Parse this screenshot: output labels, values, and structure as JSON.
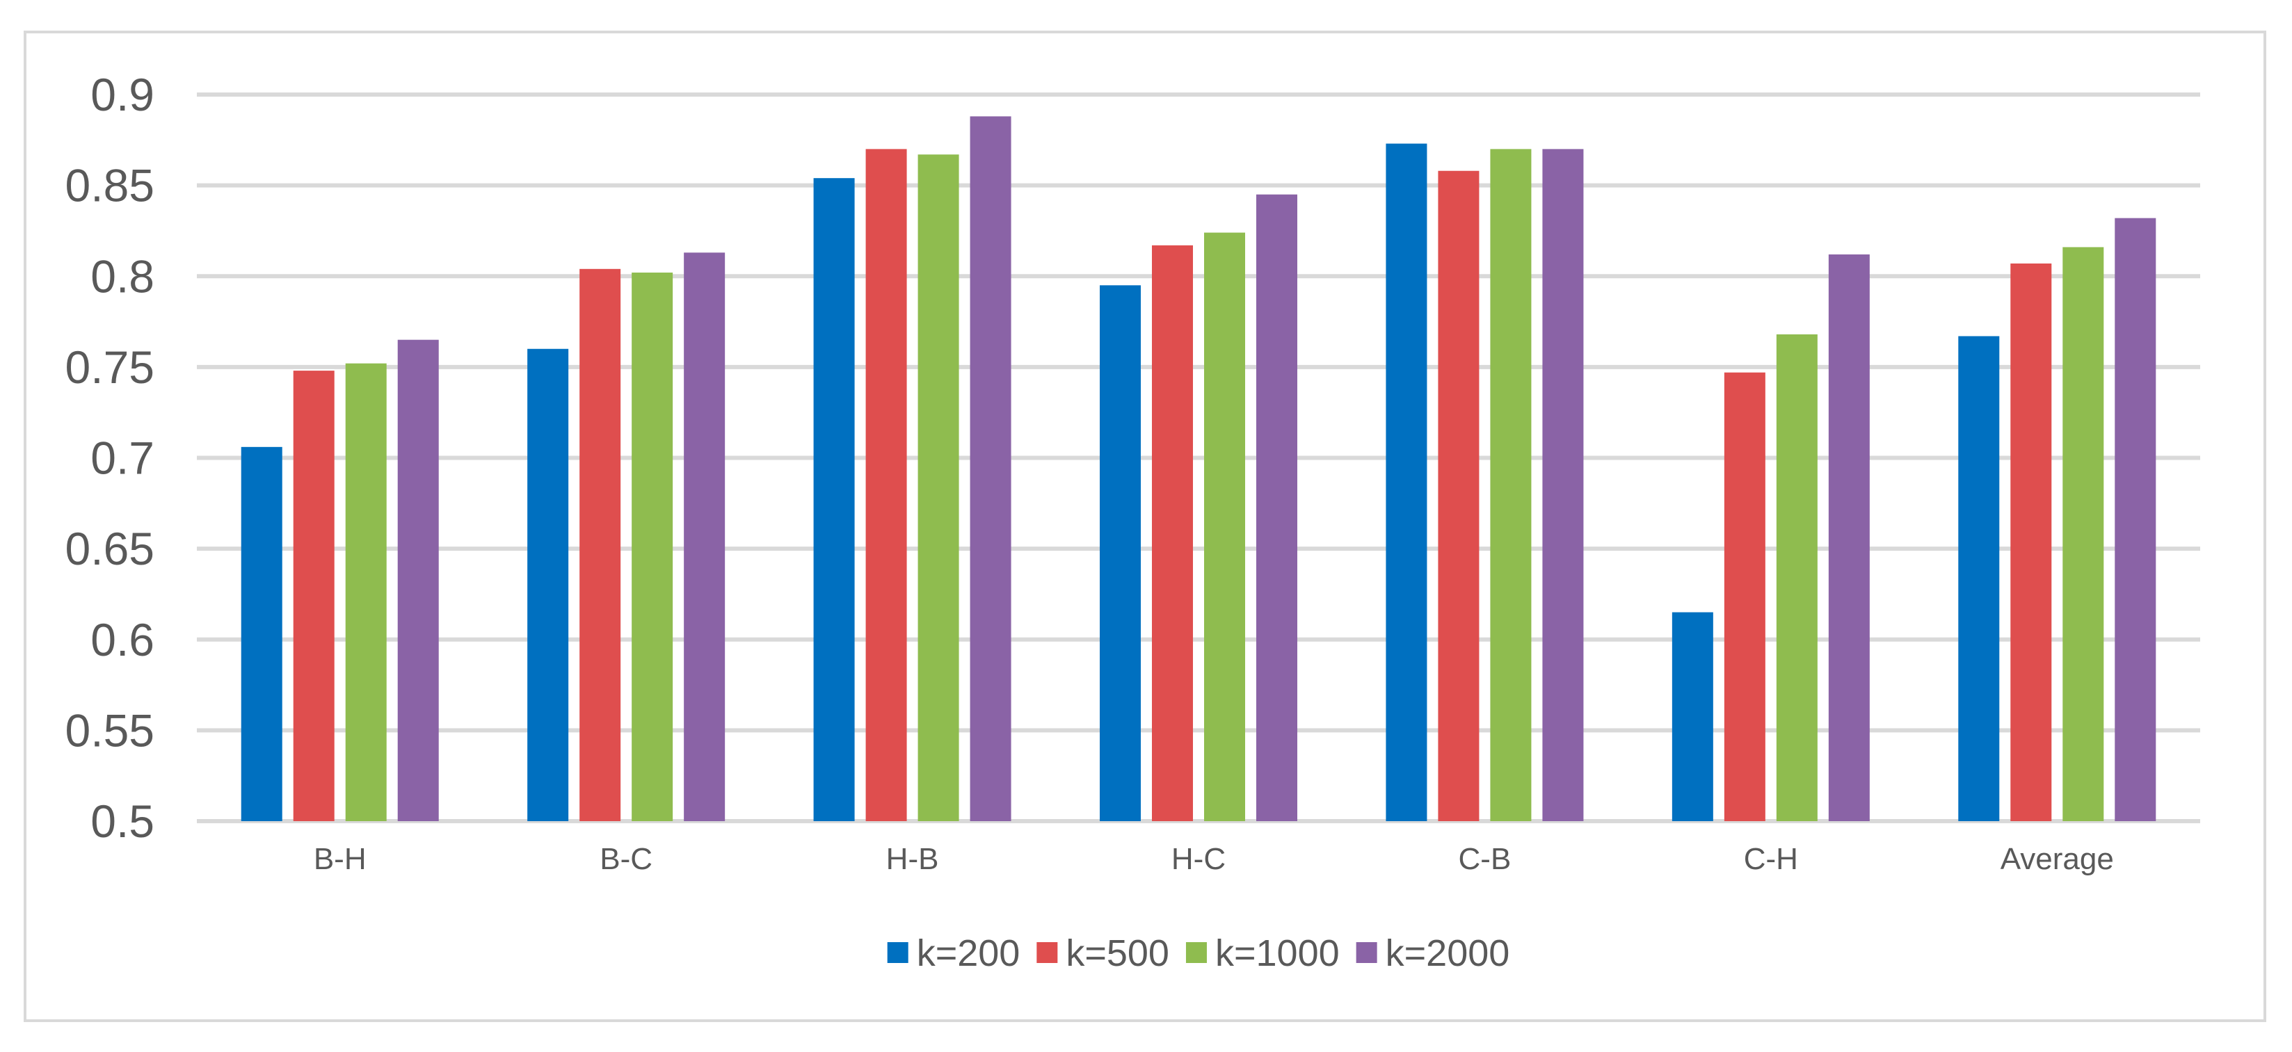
{
  "chart_data": {
    "type": "bar",
    "title": "",
    "xlabel": "",
    "ylabel": "",
    "categories": [
      "B-H",
      "B-C",
      "H-B",
      "H-C",
      "C-B",
      "C-H",
      "Average"
    ],
    "series": [
      {
        "name": "k=200",
        "color": "#0070C0",
        "values": [
          0.706,
          0.76,
          0.854,
          0.795,
          0.873,
          0.615,
          0.767
        ]
      },
      {
        "name": "k=500",
        "color": "#DF4E4E",
        "values": [
          0.748,
          0.804,
          0.87,
          0.817,
          0.858,
          0.747,
          0.807
        ]
      },
      {
        "name": "k=1000",
        "color": "#8FBC4F",
        "values": [
          0.752,
          0.802,
          0.867,
          0.824,
          0.87,
          0.768,
          0.816
        ]
      },
      {
        "name": "k=2000",
        "color": "#8A63A6",
        "values": [
          0.765,
          0.813,
          0.888,
          0.845,
          0.87,
          0.812,
          0.832
        ]
      }
    ],
    "ylim": [
      0.5,
      0.9
    ],
    "yticks": [
      "0.5",
      "0.55",
      "0.6",
      "0.65",
      "0.7",
      "0.75",
      "0.8",
      "0.85",
      "0.9"
    ],
    "grid": true,
    "legend_position": "bottom"
  }
}
